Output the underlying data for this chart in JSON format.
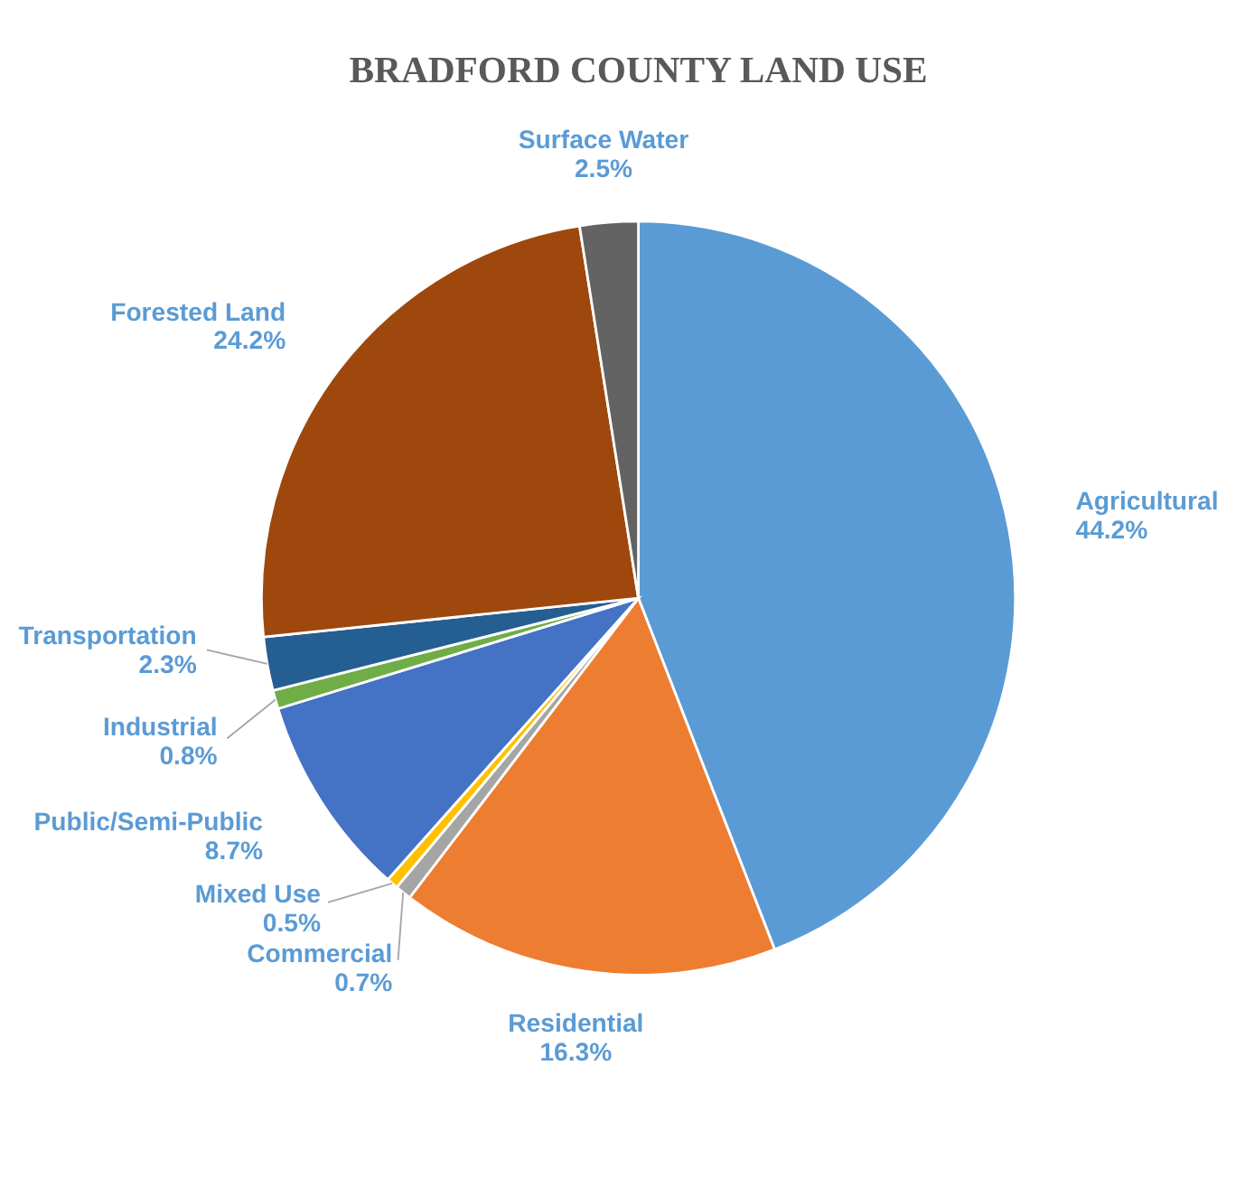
{
  "chart_data": {
    "type": "pie",
    "title": "BRADFORD COUNTY LAND USE",
    "categories": [
      "Agricultural",
      "Residential",
      "Commercial",
      "Mixed Use",
      "Public/Semi-Public",
      "Industrial",
      "Transportation",
      "Forested Land",
      "Surface Water"
    ],
    "values": [
      44.2,
      16.3,
      0.7,
      0.5,
      8.7,
      0.8,
      2.3,
      24.2,
      2.5
    ],
    "value_labels": [
      "44.2%",
      "16.3%",
      "0.7%",
      "0.5%",
      "8.7%",
      "0.8%",
      "2.3%",
      "24.2%",
      "2.5%"
    ],
    "colors": [
      "#5b9bd5",
      "#ed7d31",
      "#a5a5a5",
      "#ffc000",
      "#4472c4",
      "#70ad47",
      "#255e91",
      "#9e480e",
      "#636363"
    ],
    "legend": false
  }
}
